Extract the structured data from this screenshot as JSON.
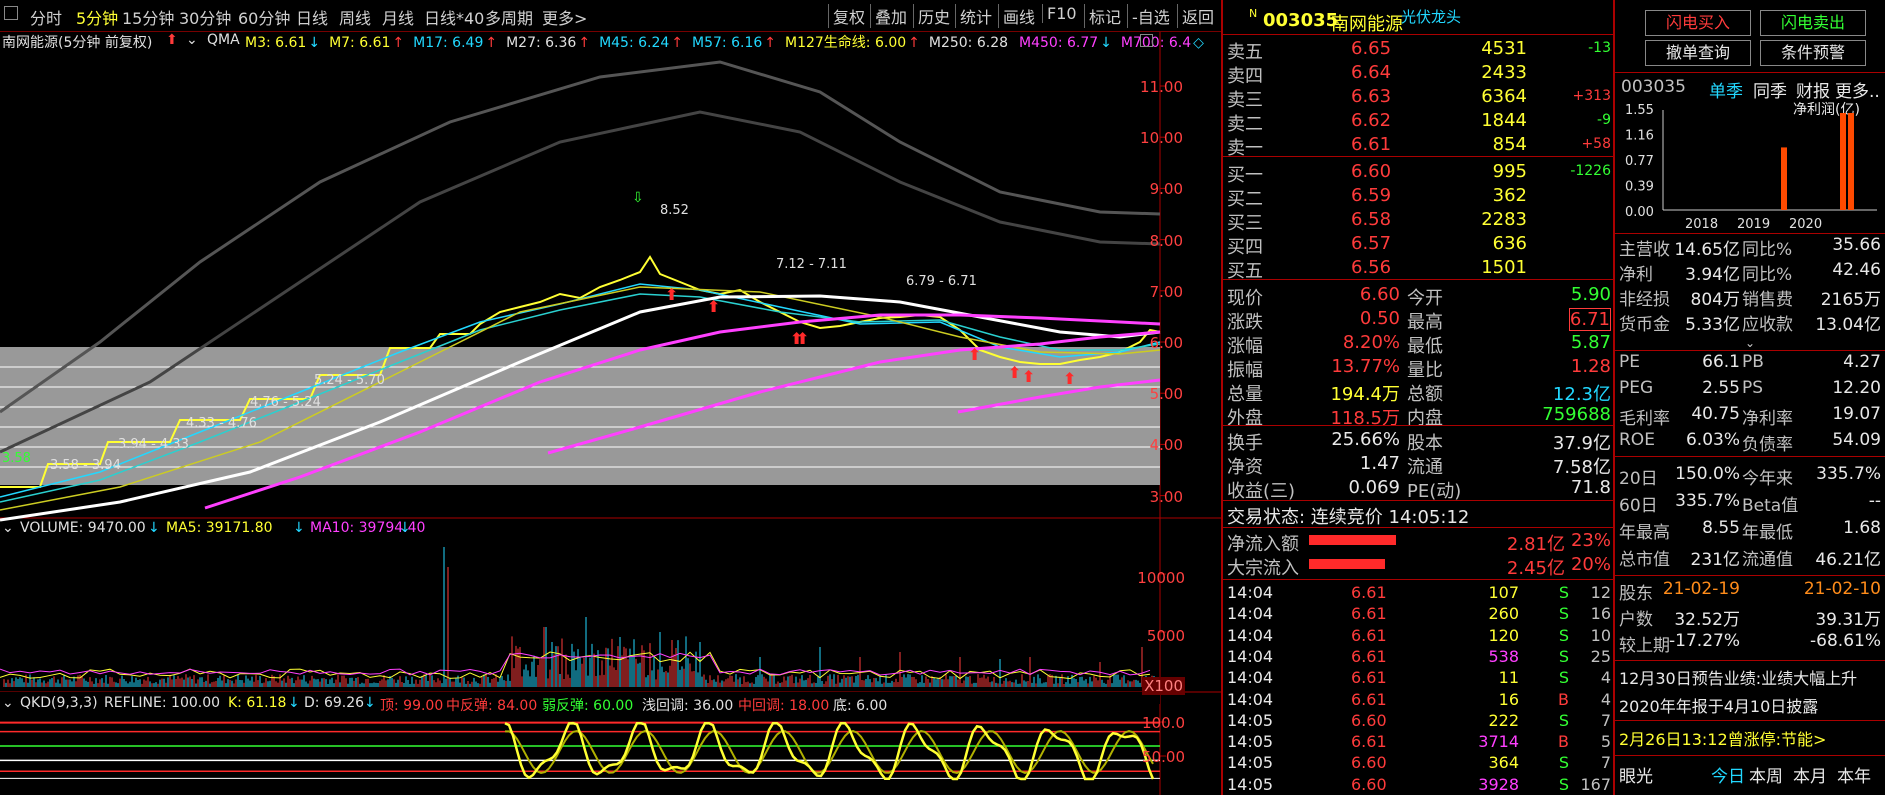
{
  "toolbar": {
    "periods": [
      "分时",
      "5分钟",
      "15分钟",
      "30分钟",
      "60分钟",
      "日线",
      "周线",
      "月线",
      "日线*40",
      "多周期",
      "更多>"
    ],
    "active_period": "5分钟",
    "right_buttons": [
      "复权",
      "叠加",
      "历史",
      "统计",
      "画线",
      "F10",
      "标记",
      "-自选",
      "返回"
    ]
  },
  "chart": {
    "header": "南网能源(5分钟 前复权)",
    "indicator_name": "QMA",
    "ma": [
      {
        "label": "M3: 6.61",
        "arrow": "↓",
        "color": "#ffff33"
      },
      {
        "label": "M7: 6.61",
        "arrow": "↑",
        "color": "#ffff33"
      },
      {
        "label": "M17: 6.49",
        "arrow": "↑",
        "color": "#22d8ff"
      },
      {
        "label": "M27: 6.36",
        "arrow": "↑",
        "color": "#e0e0e0"
      },
      {
        "label": "M45: 6.24",
        "arrow": "↑",
        "color": "#22d8ff"
      },
      {
        "label": "M57: 6.16",
        "arrow": "↑",
        "color": "#22d8ff"
      },
      {
        "label": "M127生命线: 6.00",
        "arrow": "↑",
        "color": "#ffff33"
      },
      {
        "label": "M250: 6.28",
        "arrow": "",
        "color": "#e0e0e0"
      },
      {
        "label": "M450: 6.77",
        "arrow": "↓",
        "color": "#ff40ff"
      },
      {
        "label": "M700: 6.4",
        "arrow": "◇",
        "color": "#ff40ff"
      }
    ],
    "price_axis": [
      "11.00",
      "10.00",
      "9.00",
      "8.00",
      "7.00",
      "6.00",
      "5.00",
      "4.00",
      "3.00"
    ],
    "peak_label": "8.52",
    "range_labels": [
      "3.58 - 3.94",
      "3.94 - 4.33",
      "4.33 - 4.76",
      "4.76 - 5.24",
      "5.24 - 5.70",
      "7.12 - 7.11",
      "6.79 - 6.71"
    ],
    "start_label": "3.58"
  },
  "volume": {
    "title": "VOLUME: 9470.00",
    "ma5": "MA5: 39171.80",
    "ma10": "MA10: 39794.40",
    "axis": [
      "10000",
      "5000",
      "X100"
    ]
  },
  "qkd": {
    "title": "QKD(9,3,3)",
    "refline": "REFLINE: 100.00",
    "k": "K: 61.18",
    "d": "D: 69.26",
    "top": "顶: 99.00",
    "mid_rebound": "中反弹: 84.00",
    "weak_rebound": "弱反弹: 60.00",
    "shallow": "浅回调: 36.00",
    "mid_pullback": "中回调: 18.00",
    "bottom": "底: 6.00",
    "axis": [
      "100.0",
      "50.00"
    ]
  },
  "quote": {
    "code": "003035",
    "name": "南网能源",
    "tag": "光伏龙头",
    "asks": [
      {
        "label": "卖五",
        "price": "6.65",
        "vol": "4531",
        "chg": "-13"
      },
      {
        "label": "卖四",
        "price": "6.64",
        "vol": "2433",
        "chg": ""
      },
      {
        "label": "卖三",
        "price": "6.63",
        "vol": "6364",
        "chg": "+313"
      },
      {
        "label": "卖二",
        "price": "6.62",
        "vol": "1844",
        "chg": "-9"
      },
      {
        "label": "卖一",
        "price": "6.61",
        "vol": "854",
        "chg": "+58"
      }
    ],
    "bids": [
      {
        "label": "买一",
        "price": "6.60",
        "vol": "995",
        "chg": "-1226"
      },
      {
        "label": "买二",
        "price": "6.59",
        "vol": "362",
        "chg": ""
      },
      {
        "label": "买三",
        "price": "6.58",
        "vol": "2283",
        "chg": ""
      },
      {
        "label": "买四",
        "price": "6.57",
        "vol": "636",
        "chg": ""
      },
      {
        "label": "买五",
        "price": "6.56",
        "vol": "1501",
        "chg": ""
      }
    ],
    "stats": [
      {
        "l1": "现价",
        "v1": "6.60",
        "l2": "今开",
        "v2": "5.90"
      },
      {
        "l1": "涨跌",
        "v1": "0.50",
        "l2": "最高",
        "v2": "6.71"
      },
      {
        "l1": "涨幅",
        "v1": "8.20%",
        "l2": "最低",
        "v2": "5.87"
      },
      {
        "l1": "振幅",
        "v1": "13.77%",
        "l2": "量比",
        "v2": "1.28"
      },
      {
        "l1": "总量",
        "v1": "194.4万",
        "l2": "总额",
        "v2": "12.3亿"
      },
      {
        "l1": "外盘",
        "v1": "118.5万",
        "l2": "内盘",
        "v2": "759688"
      }
    ],
    "stats2": [
      {
        "l1": "换手",
        "v1": "25.66%",
        "l2": "股本",
        "v2": "37.9亿"
      },
      {
        "l1": "净资",
        "v1": "1.47",
        "l2": "流通",
        "v2": "7.58亿"
      },
      {
        "l1": "收益(三)",
        "v1": "0.069",
        "l2": "PE(动)",
        "v2": "71.8"
      }
    ],
    "trade_status": "交易状态: 连续竞价 14:05:12",
    "net_inflow_label": "净流入额",
    "net_inflow_value": "2.81亿",
    "net_inflow_pct": "23%",
    "net_inflow_ratio": 0.23,
    "block_inflow_label": "大宗流入",
    "block_inflow_value": "2.45亿",
    "block_inflow_pct": "20%",
    "block_inflow_ratio": 0.2,
    "ticks": [
      {
        "t": "14:04",
        "p": "6.61",
        "v": "107",
        "bs": "S",
        "n": "12"
      },
      {
        "t": "14:04",
        "p": "6.61",
        "v": "260",
        "bs": "S",
        "n": "16"
      },
      {
        "t": "14:04",
        "p": "6.61",
        "v": "120",
        "bs": "S",
        "n": "10"
      },
      {
        "t": "14:04",
        "p": "6.61",
        "v": "538",
        "bs": "S",
        "n": "25"
      },
      {
        "t": "14:04",
        "p": "6.61",
        "v": "11",
        "bs": "S",
        "n": "4"
      },
      {
        "t": "14:04",
        "p": "6.61",
        "v": "16",
        "bs": "B",
        "n": "4"
      },
      {
        "t": "14:05",
        "p": "6.60",
        "v": "222",
        "bs": "S",
        "n": "7"
      },
      {
        "t": "14:05",
        "p": "6.61",
        "v": "3714",
        "bs": "B",
        "n": "5"
      },
      {
        "t": "14:05",
        "p": "6.60",
        "v": "364",
        "bs": "S",
        "n": "7"
      },
      {
        "t": "14:05",
        "p": "6.60",
        "v": "3928",
        "bs": "S",
        "n": "167"
      }
    ]
  },
  "fin": {
    "btn_buy": "闪电买入",
    "btn_sell": "闪电卖出",
    "btn_orders": "撤单查询",
    "btn_cond": "条件预警",
    "code": "003035",
    "tabs": [
      "单季",
      "同季",
      "财报",
      "更多.."
    ],
    "chart_title": "净利润(亿)",
    "y_labels": [
      "1.55",
      "1.16",
      "0.77",
      "0.39",
      "0.00"
    ],
    "x_labels": [
      "2018",
      "2019",
      "2020"
    ],
    "rows": [
      {
        "l1": "主营收",
        "v1": "14.65亿",
        "l2": "同比%",
        "v2": "35.66"
      },
      {
        "l1": "净利",
        "v1": "3.94亿",
        "l2": "同比%",
        "v2": "42.46"
      },
      {
        "l1": "非经损",
        "v1": "804万",
        "l2": "销售费",
        "v2": "2165万"
      },
      {
        "l1": "货币金",
        "v1": "5.33亿",
        "l2": "应收款",
        "v2": "13.04亿"
      }
    ],
    "rows2": [
      {
        "l1": "PE",
        "v1": "66.1",
        "l2": "PB",
        "v2": "4.27"
      },
      {
        "l1": "PEG",
        "v1": "2.55",
        "l2": "PS",
        "v2": "12.20"
      },
      {
        "l1": "毛利率",
        "v1": "40.75",
        "l2": "净利率",
        "v2": "19.07"
      },
      {
        "l1": "ROE",
        "v1": "6.03%",
        "l2": "负债率",
        "v2": "54.09"
      }
    ],
    "rows3": [
      {
        "l1": "20日",
        "v1": "150.0%",
        "l2": "今年来",
        "v2": "335.7%"
      },
      {
        "l1": "60日",
        "v1": "335.7%",
        "l2": "Beta值",
        "v2": "--"
      },
      {
        "l1": "年最高",
        "v1": "8.55",
        "l2": "年最低",
        "v2": "1.68"
      },
      {
        "l1": "总市值",
        "v1": "231亿",
        "l2": "流通值",
        "v2": "46.21亿"
      }
    ],
    "holders": [
      {
        "l": "股东",
        "a": "21-02-19",
        "b": "21-02-10"
      },
      {
        "l": "户数",
        "a": "32.52万",
        "b": "39.31万"
      },
      {
        "l": "较上期",
        "a": "-17.27%",
        "b": "-68.61%"
      }
    ],
    "news1": "12月30日预告业绩:业绩大幅上升",
    "news2": "2020年年报于4月10日披露",
    "news3": "2月26日13:12曾涨停:节能>",
    "bottom_tabs": [
      "眼光",
      "今日",
      "本周",
      "本月",
      "本年"
    ]
  },
  "colors": {
    "up": "#ff3b3b",
    "down": "#33ff33",
    "yellow": "#ffff33",
    "cyan": "#22d8ff",
    "magenta": "#ff40ff",
    "frame": "#aa0000"
  }
}
